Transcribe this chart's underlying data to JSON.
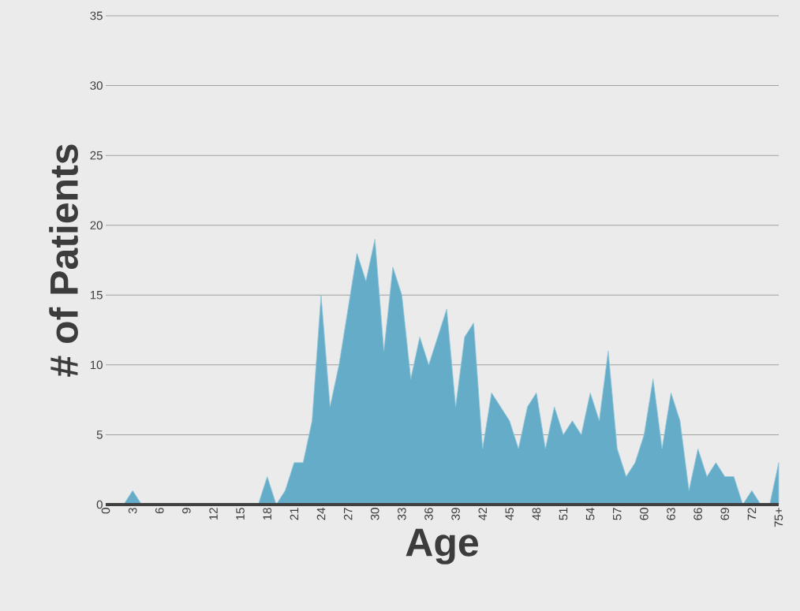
{
  "chart_data": {
    "type": "area",
    "xlabel": "Age",
    "ylabel": "# of Patients",
    "categories": [
      "0",
      null,
      null,
      "3",
      null,
      null,
      "6",
      null,
      null,
      "9",
      null,
      null,
      "12",
      null,
      null,
      "15",
      null,
      null,
      "18",
      null,
      null,
      "21",
      null,
      null,
      "24",
      null,
      null,
      "27",
      null,
      null,
      "30",
      null,
      null,
      "33",
      null,
      null,
      "36",
      null,
      null,
      "39",
      null,
      null,
      "42",
      null,
      null,
      "45",
      null,
      null,
      "48",
      null,
      null,
      "51",
      null,
      null,
      "54",
      null,
      null,
      "57",
      null,
      null,
      "60",
      null,
      null,
      "63",
      null,
      null,
      "66",
      null,
      null,
      "69",
      null,
      null,
      "72",
      null,
      null,
      "75+"
    ],
    "values": [
      0,
      0,
      0,
      1,
      0,
      0,
      0,
      0,
      0,
      0,
      0,
      0,
      0,
      0,
      0,
      0,
      0,
      0,
      2,
      0,
      1,
      3,
      3,
      6,
      15,
      7,
      10,
      14,
      18,
      16,
      19,
      11,
      17,
      15,
      9,
      12,
      10,
      12,
      14,
      7,
      12,
      13,
      4,
      8,
      7,
      6,
      4,
      7,
      8,
      4,
      7,
      5,
      6,
      5,
      8,
      6,
      11,
      4,
      2,
      3,
      5,
      9,
      4,
      8,
      6,
      1,
      4,
      2,
      3,
      2,
      2,
      0,
      1,
      0,
      0,
      3
    ],
    "color": "#64acc8",
    "ylim": [
      0,
      35
    ],
    "yticks": [
      0,
      5,
      10,
      15,
      20,
      25,
      30,
      35
    ],
    "grid": "y"
  }
}
